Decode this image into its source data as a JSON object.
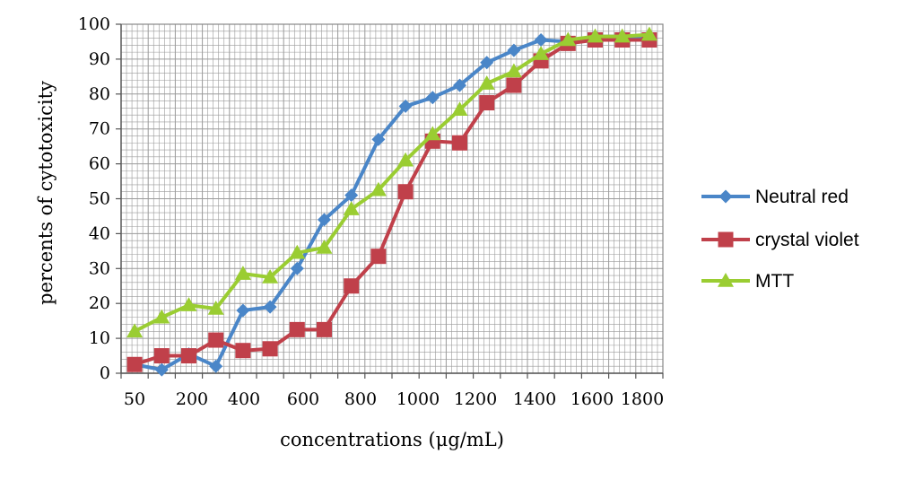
{
  "chart_data": {
    "type": "line",
    "xlabel": "concentrations (μg/mL)",
    "ylabel": "percents of cytotoxicity",
    "ylim": [
      0,
      100
    ],
    "y_ticks": [
      0,
      10,
      20,
      30,
      40,
      50,
      60,
      70,
      80,
      90,
      100
    ],
    "x_tick_labels": [
      "50",
      "200",
      "400",
      "600",
      "800",
      "1000",
      "1200",
      "1400",
      "1600",
      "1800"
    ],
    "grid": true,
    "legend_position": "right",
    "x": [
      50,
      100,
      150,
      200,
      300,
      400,
      500,
      600,
      700,
      800,
      900,
      1000,
      1100,
      1200,
      1300,
      1400,
      1500,
      1600,
      1700,
      1800
    ],
    "series": [
      {
        "name": "Neutral red",
        "color": "#4A86C8",
        "marker": "diamond",
        "values": [
          2.5,
          1.0,
          5.5,
          2.0,
          18.0,
          19.0,
          30.0,
          44.0,
          51.0,
          67.0,
          76.5,
          79.0,
          82.5,
          89.0,
          92.5,
          95.5,
          95.0,
          96.5,
          96.5,
          96.5
        ]
      },
      {
        "name": "crystal violet",
        "color": "#C0404A",
        "marker": "square",
        "values": [
          2.5,
          5.0,
          5.0,
          9.5,
          6.5,
          7.0,
          12.5,
          12.5,
          25.0,
          33.5,
          52.0,
          66.5,
          66.0,
          77.5,
          82.5,
          89.5,
          94.5,
          95.5,
          95.5,
          95.5
        ]
      },
      {
        "name": "MTT",
        "color": "#9ACD32",
        "marker": "triangle",
        "values": [
          12.0,
          16.0,
          19.5,
          18.5,
          28.5,
          27.5,
          34.5,
          36.0,
          47.0,
          52.5,
          61.0,
          68.5,
          75.5,
          83.0,
          86.5,
          91.5,
          95.5,
          96.5,
          96.5,
          97.0
        ]
      }
    ]
  }
}
